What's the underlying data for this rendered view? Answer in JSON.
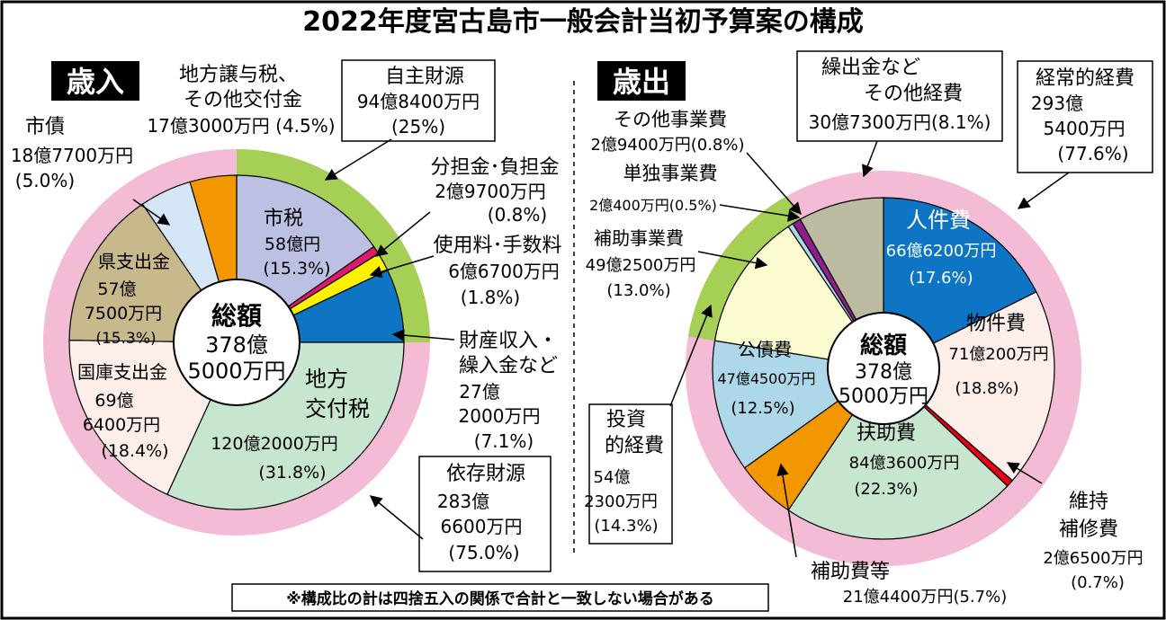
{
  "title": "2022年度宮古島市一般会計当初予算案の構成",
  "footnote": "※構成比の計は四捨五入の関係で合計と一致しない場合がある",
  "colors": {
    "pink": "#f3bbd5",
    "green": "#a6cf55",
    "lavender": "#bcc1e3",
    "magenta": "#e0196e",
    "yellow": "#fff200",
    "blue": "#0e74c4",
    "mint": "#c7e6cf",
    "peach": "#fdeee9",
    "tan": "#c8b98c",
    "paleblue": "#d5e6f6",
    "orange": "#f39700",
    "cream": "#fdfcd0",
    "lightblue": "#acd8ea",
    "gray": "#bcbaa1",
    "purple": "#8e1f8c",
    "red": "#e60012"
  },
  "chart_data": [
    {
      "type": "pie",
      "title": "歳入",
      "center_label": [
        "総額",
        "378億",
        "5000万円"
      ],
      "slices": [
        {
          "id": "shizei",
          "label": "市税",
          "amount": "58億円",
          "percent": 15.3,
          "color": "lavender"
        },
        {
          "id": "buntankin",
          "label": "分担金・負担金",
          "amount": "2億9700万円",
          "percent": 0.8,
          "color": "magenta"
        },
        {
          "id": "shiyoryo",
          "label": "使用料・手数料",
          "amount": "6億6700万円",
          "percent": 1.8,
          "color": "yellow"
        },
        {
          "id": "zaisan",
          "label": "財産収入・繰入金など",
          "amount": "27億2000万円",
          "percent": 7.1,
          "color": "blue"
        },
        {
          "id": "kofuzei",
          "label": "地方交付税",
          "amount": "120億2000万円",
          "percent": 31.8,
          "color": "mint"
        },
        {
          "id": "kokko",
          "label": "国庫支出金",
          "amount": "69億6400万円",
          "percent": 18.4,
          "color": "peach"
        },
        {
          "id": "kenshishutsu",
          "label": "県支出金",
          "amount": "57億7500万円",
          "percent": 15.3,
          "color": "tan"
        },
        {
          "id": "shisai",
          "label": "市債",
          "amount": "18億7700万円",
          "percent": 5.0,
          "color": "paleblue"
        },
        {
          "id": "joyozei",
          "label": "地方譲与税、その他交付金",
          "amount": "17億3000万円",
          "percent": 4.5,
          "color": "orange"
        }
      ],
      "outer_ring": [
        {
          "label": "自主財源",
          "amount": "94億8400万円",
          "percent": 25,
          "color": "green"
        },
        {
          "label": "依存財源",
          "amount": "283億6600万円",
          "percent": 75.0,
          "color": "pink"
        }
      ]
    },
    {
      "type": "pie",
      "title": "歳出",
      "center_label": [
        "総額",
        "378億",
        "5000万円"
      ],
      "slices": [
        {
          "id": "jinken",
          "label": "人件費",
          "amount": "66億6200万円",
          "percent": 17.6,
          "color": "blue"
        },
        {
          "id": "bukken",
          "label": "物件費",
          "amount": "71億200万円",
          "percent": 18.8,
          "color": "peach"
        },
        {
          "id": "iji",
          "label": "維持補修費",
          "amount": "2億6500万円",
          "percent": 0.7,
          "color": "red"
        },
        {
          "id": "fujo",
          "label": "扶助費",
          "amount": "84億3600万円",
          "percent": 22.3,
          "color": "mint"
        },
        {
          "id": "hojohi",
          "label": "補助費等",
          "amount": "21億4400万円",
          "percent": 5.7,
          "color": "orange"
        },
        {
          "id": "kosai",
          "label": "公債費",
          "amount": "47億4500万円",
          "percent": 12.5,
          "color": "lightblue"
        },
        {
          "id": "hojojigyo",
          "label": "補助事業費",
          "amount": "49億2500万円",
          "percent": 13.0,
          "color": "cream"
        },
        {
          "id": "tandoku",
          "label": "単独事業費",
          "amount": "2億400万円",
          "percent": 0.5,
          "color": "lightblue"
        },
        {
          "id": "sonotajigyo",
          "label": "その他事業費",
          "amount": "2億9400万円",
          "percent": 0.8,
          "color": "purple"
        },
        {
          "id": "kuridashi",
          "label": "繰出金などその他経費",
          "amount": "30億7300万円",
          "percent": 8.1,
          "color": "gray"
        }
      ],
      "outer_ring": [
        {
          "label": "経常的経費",
          "amount": "293億5400万円",
          "percent": 77.6,
          "color": "pink"
        },
        {
          "label": "投資的経費",
          "amount": "54億2300万円",
          "percent": 14.3,
          "color": "green"
        },
        {
          "label": "繰出金などその他経費",
          "amount": "30億7300万円",
          "percent": 8.1,
          "color": "gray"
        }
      ]
    }
  ],
  "labels": {
    "rev_title": "歳入",
    "exp_title": "歳出",
    "center": [
      "総額",
      "378億",
      "5000万円"
    ],
    "shizei": [
      "市税",
      "58億円",
      "(15.3%)"
    ],
    "buntankin": [
      "分担金･負担金",
      "2億9700万円",
      "(0.8%)"
    ],
    "shiyoryo": [
      "使用料･手数料",
      "6億6700万円",
      "(1.8%)"
    ],
    "zaisan": [
      "財産収入・",
      "繰入金など",
      "27億",
      "2000万円",
      "(7.1%)"
    ],
    "kofuzei": [
      "地方",
      "交付税",
      "120億2000万円",
      "(31.8%)"
    ],
    "kokko": [
      "国庫支出金",
      "69億",
      "6400万円",
      "(18.4%)"
    ],
    "kenshishutsu": [
      "県支出金",
      "57億",
      "7500万円",
      "(15.3%)"
    ],
    "shisai": [
      "市債",
      "18億7700万円",
      "(5.0%)"
    ],
    "joyozei": [
      "地方譲与税、",
      "その他交付金",
      "17億3000万円 (4.5%)"
    ],
    "jishu": [
      "自主財源",
      "94億8400万円",
      "(25%)"
    ],
    "izon": [
      "依存財源",
      "283億",
      "6600万円",
      "(75.0%)"
    ],
    "jinken": [
      "人件費",
      "66億6200万円",
      "(17.6%)"
    ],
    "bukken": [
      "物件費",
      "71億200万円",
      "(18.8%)"
    ],
    "iji": [
      "維持",
      "補修費",
      "2億6500万円",
      "(0.7%)"
    ],
    "fujo": [
      "扶助費",
      "84億3600万円",
      "(22.3%)"
    ],
    "hojohi": [
      "補助費等",
      "21億4400万円(5.7%)"
    ],
    "kosai": [
      "公債費",
      "47億4500万円",
      "(12.5%)"
    ],
    "hojojigyo": [
      "補助事業費",
      "49億2500万円",
      "(13.0%)"
    ],
    "tandoku": [
      "単独事業費",
      "2億400万円(0.5%)"
    ],
    "sonotajigyo": [
      "その他事業費",
      "2億9400万円(0.8%)"
    ],
    "kuridashi": [
      "繰出金など",
      "その他経費",
      "30億7300万円(8.1%)"
    ],
    "keijo": [
      "経常的経費",
      "293億",
      "5400万円",
      "(77.6%)"
    ],
    "toshi": [
      "投資",
      "的経費",
      "54億",
      "2300万円",
      "(14.3%)"
    ]
  }
}
